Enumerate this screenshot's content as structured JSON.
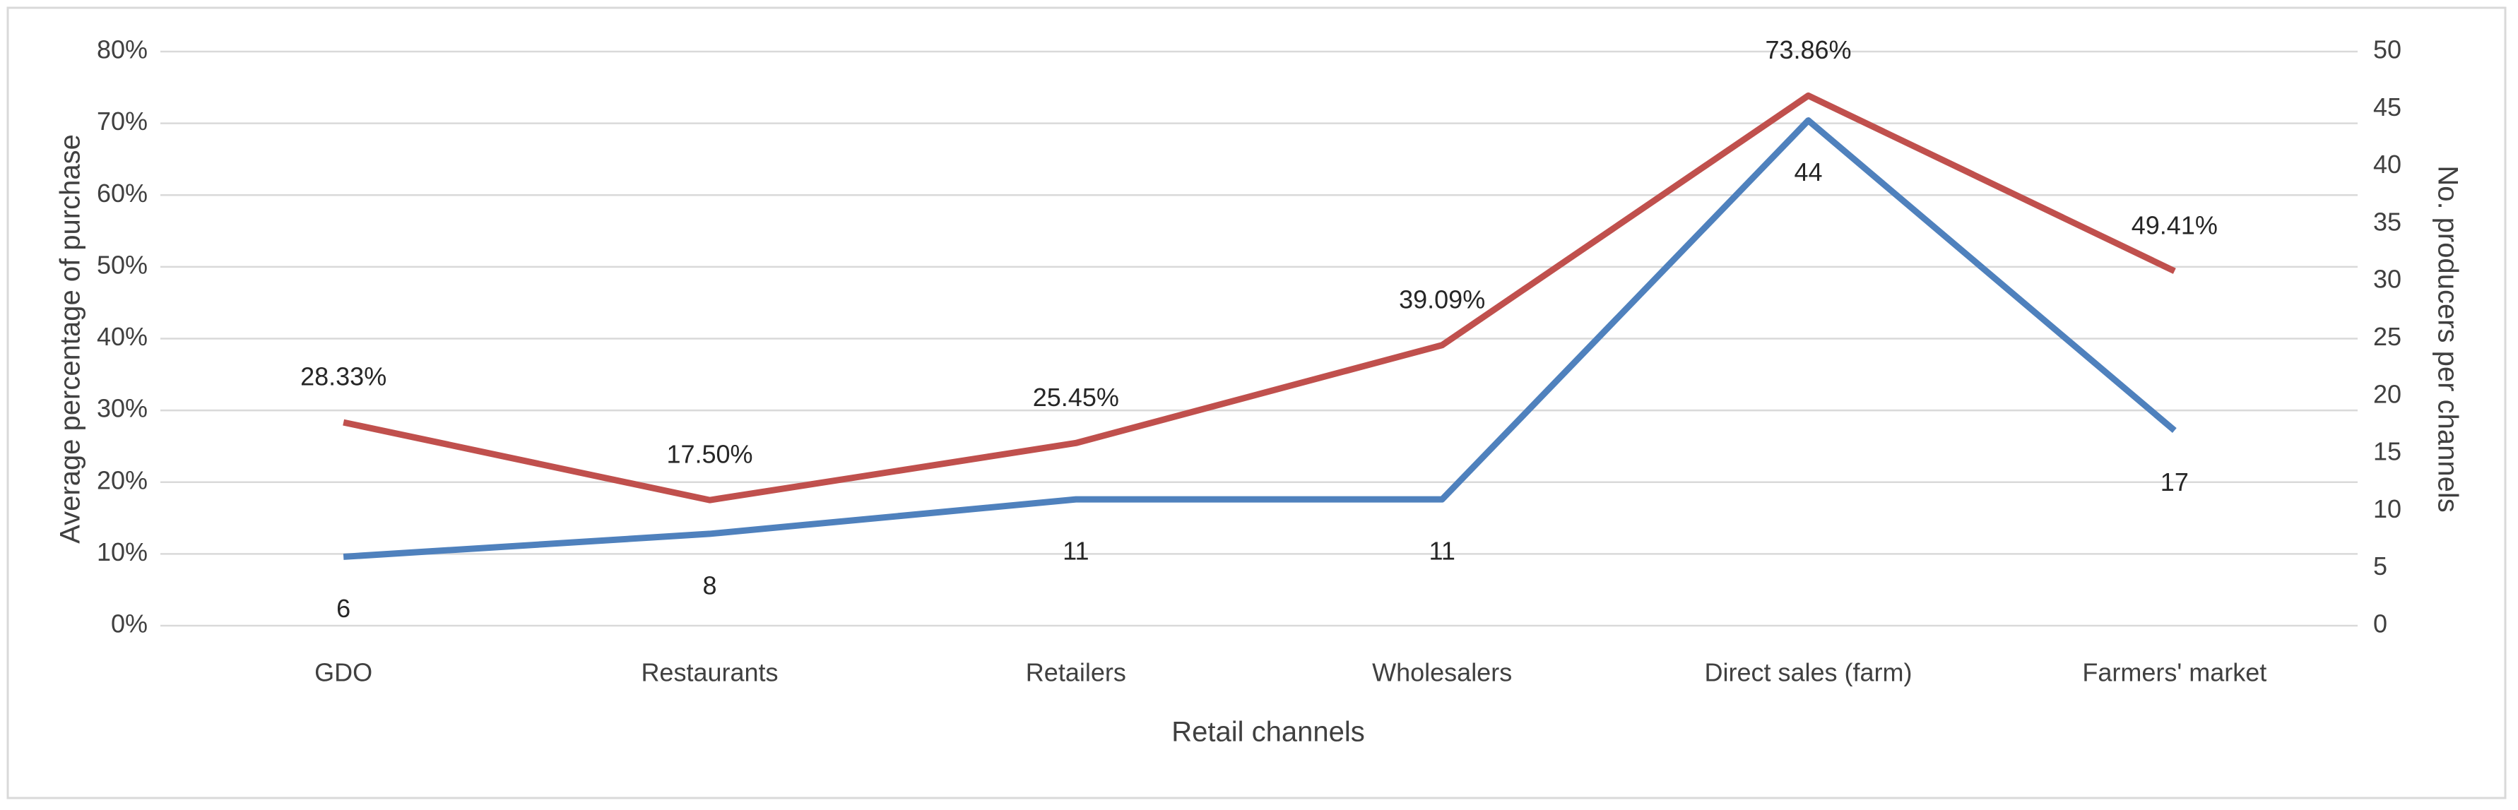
{
  "chart_data": {
    "type": "line",
    "x_label": "Retail channels",
    "y_label": "Average percentage of purchase",
    "y2_label": "No. producers per channels",
    "categories": [
      "GDO",
      "Restaurants",
      "Retailers",
      "Wholesalers",
      "Direct sales (farm)",
      "Farmers' market"
    ],
    "series": [
      {
        "color": "#c0504d",
        "values": [
          28.33,
          17.5,
          25.45,
          39.09,
          73.86,
          49.41
        ],
        "value_labels": [
          "28.33%",
          "17.50%",
          "25.45%",
          "39.09%",
          "73.86%",
          "49.41%"
        ]
      },
      {
        "color": "#4f81bd",
        "axis": "y2",
        "values": [
          6,
          8,
          11,
          11,
          44,
          17
        ]
      }
    ],
    "ylim": [
      0,
      80
    ],
    "yticks": [
      {
        "value": 0,
        "label": "0%"
      },
      {
        "value": 10,
        "label": "10%"
      },
      {
        "value": 20,
        "label": "20%"
      },
      {
        "value": 30,
        "label": "30%"
      },
      {
        "value": 40,
        "label": "40%"
      },
      {
        "value": 50,
        "label": "50%"
      },
      {
        "value": 60,
        "label": "60%"
      },
      {
        "value": 70,
        "label": "70%"
      },
      {
        "value": 80,
        "label": "80%"
      }
    ],
    "y2lim": [
      0,
      50
    ],
    "y2ticks": [
      0,
      5,
      10,
      15,
      20,
      25,
      30,
      35,
      40,
      45,
      50
    ],
    "grid": true
  }
}
